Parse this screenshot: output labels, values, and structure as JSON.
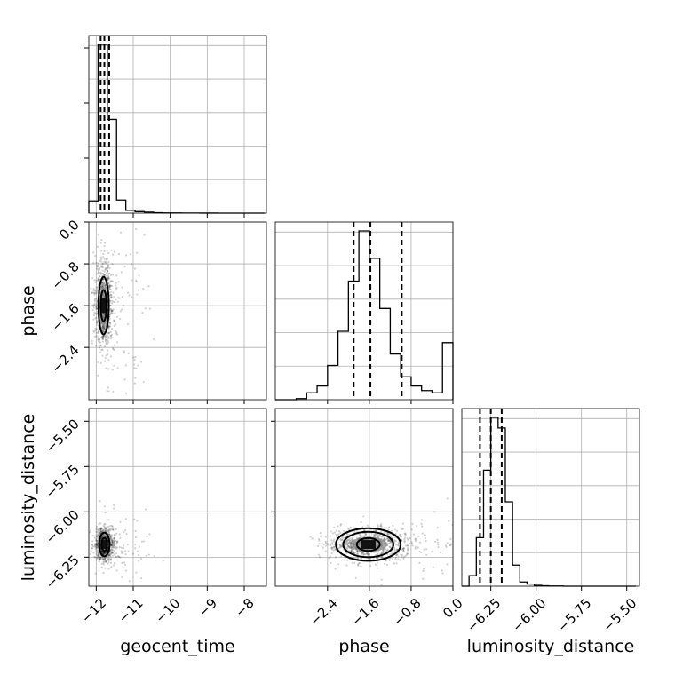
{
  "chart_data": {
    "type": "corner",
    "parameters": [
      "geocent_time",
      "phase",
      "luminosity_distance"
    ],
    "axes": {
      "geocent_time": {
        "range": [
          -12.2,
          -7.4
        ],
        "ticks": [
          -12,
          -11,
          -10,
          -9,
          -8
        ],
        "tick_labels": [
          "−12",
          "−11",
          "−10",
          "−9",
          "−8"
        ]
      },
      "phase": {
        "range": [
          -3.4,
          0.0
        ],
        "ticks": [
          -2.4,
          -1.6,
          -0.8,
          0.0
        ],
        "tick_labels": [
          "−2.4",
          "−1.6",
          "−0.8",
          "0.0"
        ]
      },
      "luminosity_distance": {
        "range": [
          -6.41,
          -5.43
        ],
        "ticks": [
          -6.25,
          -6.0,
          -5.75,
          -5.5
        ],
        "tick_labels": [
          "−6.25",
          "−6.00",
          "−5.75",
          "−5.50"
        ]
      }
    },
    "grid": true,
    "histograms": {
      "geocent_time": {
        "bin_edges": [
          -12.2,
          -11.95,
          -11.7,
          -11.45,
          -11.2,
          -10.95,
          -10.7,
          -10.45,
          -10.2,
          -9.95,
          -9.7,
          -9.45,
          -9.2,
          -8.95,
          -8.7,
          -8.45,
          -8.2,
          -7.95,
          -7.7,
          -7.45
        ],
        "counts": [
          0.065,
          0.9,
          0.5,
          0.07,
          0.015,
          0.008,
          0.005,
          0.002,
          0.001,
          0.001,
          0.0005,
          0.0005,
          0.0003,
          0.0002,
          0.0001,
          0.0001,
          0,
          0,
          0
        ],
        "quantiles": [
          -11.88,
          -11.78,
          -11.65
        ]
      },
      "phase": {
        "bin_edges": [
          -3.4,
          -3.2,
          -3.0,
          -2.8,
          -2.6,
          -2.4,
          -2.2,
          -2.0,
          -1.8,
          -1.6,
          -1.4,
          -1.2,
          -1.0,
          -0.8,
          -0.6,
          -0.4,
          -0.2,
          0.0
        ],
        "counts": [
          0.0,
          0.0,
          0.005,
          0.03,
          0.06,
          0.15,
          0.3,
          0.52,
          0.74,
          0.62,
          0.4,
          0.2,
          0.1,
          0.06,
          0.04,
          0.03,
          0.25
        ],
        "quantiles": [
          -1.9,
          -1.58,
          -0.98
        ]
      },
      "luminosity_distance": {
        "bin_edges": [
          -6.41,
          -6.37,
          -6.33,
          -6.29,
          -6.25,
          -6.21,
          -6.17,
          -6.13,
          -6.09,
          -6.05,
          -6.01,
          -5.97,
          -5.93,
          -5.89,
          -5.85,
          -5.81,
          -5.77,
          -5.73,
          -5.69,
          -5.65,
          -5.61,
          -5.57,
          -5.53,
          -5.49,
          -5.45
        ],
        "counts": [
          0.0,
          0.05,
          0.23,
          0.55,
          0.8,
          0.75,
          0.4,
          0.1,
          0.02,
          0.01,
          0.004,
          0.002,
          0.001,
          0.001,
          0,
          0,
          0,
          0,
          0,
          0,
          0,
          0,
          0,
          0
        ],
        "quantiles": [
          -6.31,
          -6.25,
          -6.19
        ]
      }
    },
    "joint": [
      {
        "x": "geocent_time",
        "y": "phase",
        "center": [
          -11.8,
          -1.6
        ],
        "spread": [
          0.12,
          0.4
        ],
        "contour_radii": [
          [
            0.08,
            0.3
          ],
          [
            0.14,
            0.55
          ]
        ]
      },
      {
        "x": "geocent_time",
        "y": "luminosity_distance",
        "center": [
          -11.78,
          -6.18
        ],
        "spread": [
          0.12,
          0.045
        ],
        "contour_radii": [
          [
            0.08,
            0.035
          ],
          [
            0.14,
            0.065
          ]
        ]
      },
      {
        "x": "phase",
        "y": "luminosity_distance",
        "center": [
          -1.62,
          -6.18
        ],
        "spread": [
          0.4,
          0.045
        ],
        "contour_radii": [
          [
            0.22,
            0.035
          ],
          [
            0.48,
            0.07
          ],
          [
            0.62,
            0.09
          ]
        ]
      }
    ]
  }
}
